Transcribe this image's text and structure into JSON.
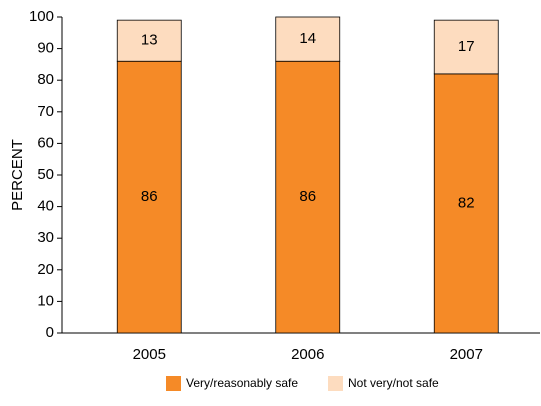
{
  "chart_data": {
    "type": "stacked_bar",
    "ylabel": "PERCENT",
    "categories": [
      "2005",
      "2006",
      "2007"
    ],
    "series": [
      {
        "name": "Very/reasonably safe",
        "color": "#f58a27",
        "values": [
          86,
          86,
          82
        ]
      },
      {
        "name": "Not very/not safe",
        "color": "#fddcbf",
        "values": [
          13,
          14,
          17
        ]
      }
    ],
    "ylim": [
      0,
      100
    ],
    "yticks": [
      0,
      10,
      20,
      30,
      40,
      50,
      60,
      70,
      80,
      90,
      100
    ],
    "legend": "bottom"
  }
}
